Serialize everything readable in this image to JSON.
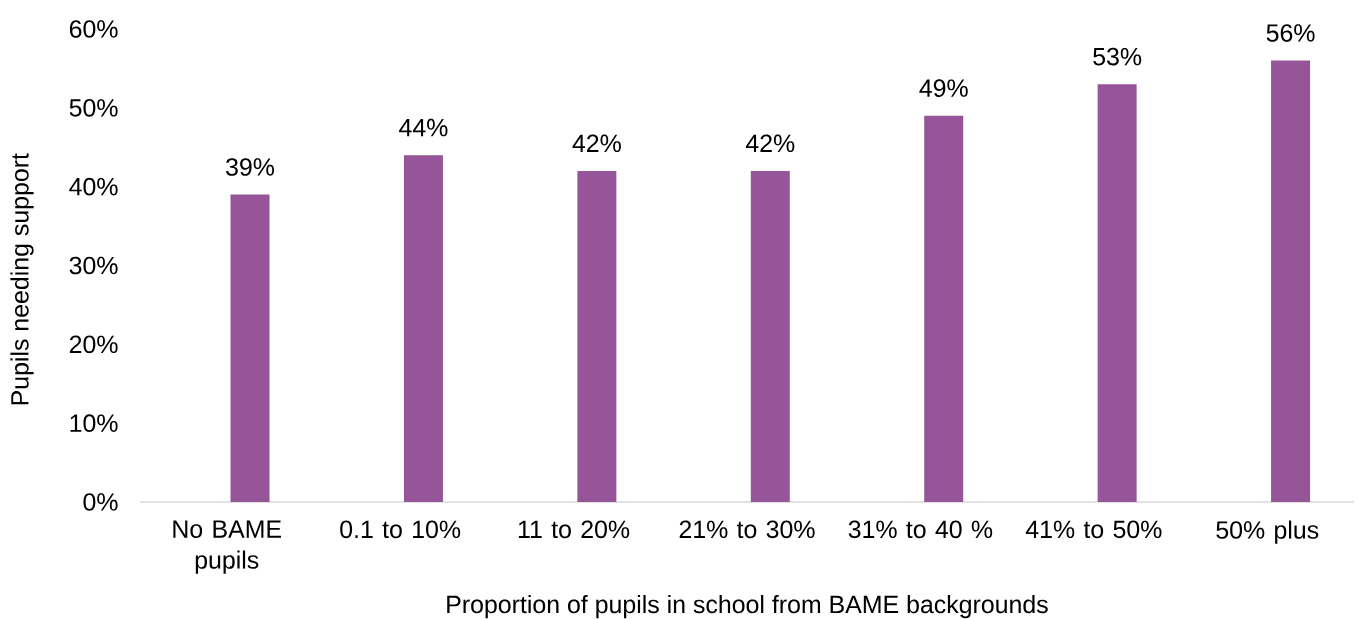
{
  "chart_data": {
    "type": "bar",
    "xlabel": "Proportion of pupils in school from BAME backgrounds",
    "ylabel": "Pupils needing support",
    "categories": [
      "No BAME pupils",
      "0.1 to 10%",
      "11 to 20%",
      "21% to 30%",
      "31% to 40 %",
      "41% to 50%",
      "50% plus"
    ],
    "values": [
      39,
      44,
      42,
      42,
      49,
      53,
      56
    ],
    "value_labels": [
      "39%",
      "44%",
      "42%",
      "42%",
      "49%",
      "53%",
      "56%"
    ],
    "color": "#955598",
    "ylim": [
      0,
      60
    ],
    "yticks": [
      {
        "value": 0,
        "label": "0%"
      },
      {
        "value": 10,
        "label": "10%"
      },
      {
        "value": 20,
        "label": "20%"
      },
      {
        "value": 30,
        "label": "30%"
      },
      {
        "value": 40,
        "label": "40%"
      },
      {
        "value": 50,
        "label": "50%"
      },
      {
        "value": 60,
        "label": "60%"
      }
    ]
  }
}
